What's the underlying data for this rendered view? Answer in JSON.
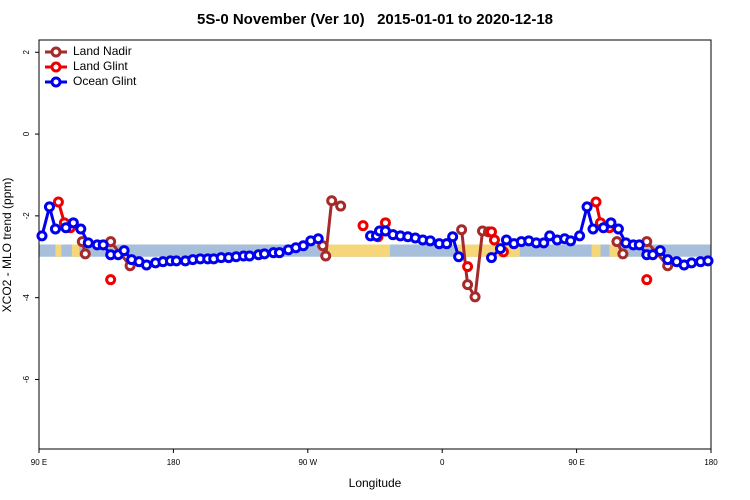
{
  "chart_data": {
    "type": "line",
    "title": "5S-0 November (Ver 10)   2015-01-01 to 2020-12-18",
    "x_label": "Longitude",
    "y_label": "XCO2 - MLO trend (ppm)",
    "xlim": [
      90,
      540
    ],
    "ylim": [
      -7.7,
      2.3
    ],
    "xticks": [
      {
        "value": 90,
        "label": "90 E"
      },
      {
        "value": 180,
        "label": "180"
      },
      {
        "value": 270,
        "label": "90 W"
      },
      {
        "value": 360,
        "label": "0"
      },
      {
        "value": 450,
        "label": "90 E"
      },
      {
        "value": 540,
        "label": "180"
      }
    ],
    "yticks": [
      -6,
      -4,
      -2,
      0,
      2
    ],
    "legend": "topleft",
    "band": {
      "ymin": -3.0,
      "ymax": -2.7,
      "color": "#a8bfdc"
    },
    "land": {
      "color": "#f5d77a",
      "spans": [
        [
          101,
          105
        ],
        [
          112,
          117
        ],
        [
          282,
          325
        ],
        [
          369,
          412
        ],
        [
          460,
          466
        ],
        [
          472,
          478
        ]
      ]
    },
    "series": [
      {
        "name": "Land Nadir",
        "color": "#a52a2a",
        "x": [
          119,
          121,
          130,
          138,
          151,
          215,
          280,
          282,
          286,
          292,
          330,
          373,
          377,
          382,
          387,
          391,
          430,
          477,
          481,
          490,
          497,
          511
        ],
        "values": [
          -2.63,
          -2.93,
          null,
          -2.63,
          -3.22,
          null,
          -2.73,
          -2.98,
          -1.63,
          -1.76,
          null,
          -2.34,
          -3.68,
          -3.98,
          -2.37,
          -2.39,
          null,
          -2.63,
          -2.93,
          null,
          -2.63,
          -3.22
        ]
      },
      {
        "name": "Land Glint",
        "color": "#ee0000",
        "x": [
          103,
          107,
          111,
          125,
          138,
          220,
          307,
          312,
          317,
          322,
          350,
          377,
          385,
          393,
          395,
          401,
          430,
          463,
          466,
          472,
          485,
          497
        ],
        "values": [
          -1.66,
          -2.17,
          -2.29,
          null,
          -3.56,
          null,
          -2.24,
          null,
          -2.51,
          -2.17,
          null,
          -3.24,
          null,
          -2.39,
          -2.59,
          -2.88,
          null,
          -1.66,
          -2.17,
          -2.29,
          null,
          -3.56
        ]
      },
      {
        "name": "Ocean Glint",
        "color": "#0000ee",
        "x": [
          92,
          97,
          101,
          108,
          113,
          118,
          123,
          129,
          133,
          138,
          143,
          147,
          152,
          157,
          162,
          168,
          173,
          178,
          182,
          188,
          193,
          198,
          203,
          207,
          212,
          217,
          222,
          227,
          231,
          237,
          241,
          247,
          251,
          257,
          262,
          267,
          272,
          277,
          295,
          312,
          316,
          318,
          322,
          327,
          332,
          337,
          342,
          347,
          352,
          358,
          363,
          367,
          371,
          382,
          393,
          399,
          403,
          408,
          413,
          418,
          423,
          428,
          432,
          437,
          442,
          446,
          452,
          457,
          461,
          468,
          473,
          478,
          483,
          488,
          492,
          497,
          501,
          506,
          511,
          517,
          522,
          527,
          533,
          538
        ],
        "values": [
          -2.49,
          -1.78,
          -2.32,
          -2.29,
          -2.17,
          -2.32,
          -2.66,
          -2.71,
          -2.71,
          -2.95,
          -2.95,
          -2.85,
          -3.07,
          -3.12,
          -3.2,
          -3.15,
          -3.12,
          -3.1,
          -3.1,
          -3.1,
          -3.07,
          -3.05,
          -3.05,
          -3.05,
          -3.02,
          -3.02,
          -3.0,
          -2.98,
          -2.98,
          -2.95,
          -2.93,
          -2.9,
          -2.9,
          -2.83,
          -2.78,
          -2.73,
          -2.61,
          -2.56,
          null,
          -2.49,
          -2.49,
          -2.37,
          -2.37,
          -2.46,
          -2.49,
          -2.51,
          -2.54,
          -2.59,
          -2.61,
          -2.68,
          -2.68,
          -2.51,
          -3.0,
          null,
          -3.02,
          -2.8,
          -2.59,
          -2.68,
          -2.63,
          -2.61,
          -2.66,
          -2.66,
          -2.49,
          -2.59,
          -2.56,
          -2.61,
          -2.49,
          -1.78,
          -2.32,
          -2.29,
          -2.17,
          -2.32,
          -2.66,
          -2.71,
          -2.71,
          -2.95,
          -2.95,
          -2.85,
          -3.07,
          -3.12,
          -3.2,
          -3.15,
          -3.12,
          -3.1
        ]
      }
    ]
  }
}
